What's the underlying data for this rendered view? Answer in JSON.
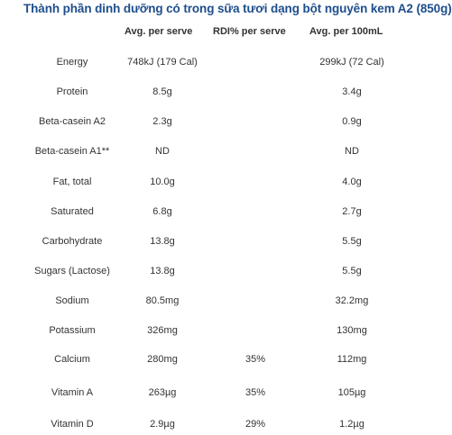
{
  "title": "Thành phần dinh dưỡng có trong sữa tươi dạng bột nguyên kem A2 (850g)",
  "headers": {
    "per_serve": "Avg. per serve",
    "rdi": "RDI% per serve",
    "per_100ml": "Avg. per 100mL"
  },
  "rows": [
    {
      "name": "Energy",
      "per_serve": "748kJ (179 Cal)",
      "rdi": "",
      "per_100ml": "299kJ (72 Cal)"
    },
    {
      "name": "Protein",
      "per_serve": "8.5g",
      "rdi": "",
      "per_100ml": "3.4g"
    },
    {
      "name": "Beta-casein A2",
      "per_serve": "2.3g",
      "rdi": "",
      "per_100ml": "0.9g"
    },
    {
      "name": "Beta-casein A1**",
      "per_serve": "ND",
      "rdi": "",
      "per_100ml": "ND"
    },
    {
      "name": "Fat, total",
      "per_serve": "10.0g",
      "rdi": "",
      "per_100ml": "4.0g"
    },
    {
      "name": "Saturated",
      "per_serve": "6.8g",
      "rdi": "",
      "per_100ml": "2.7g"
    },
    {
      "name": "Carbohydrate",
      "per_serve": "13.8g",
      "rdi": "",
      "per_100ml": "5.5g"
    },
    {
      "name": "Sugars (Lactose)",
      "per_serve": "13.8g",
      "rdi": "",
      "per_100ml": "5.5g"
    },
    {
      "name": "Sodium",
      "per_serve": "80.5mg",
      "rdi": "",
      "per_100ml": "32.2mg"
    },
    {
      "name": "Potassium",
      "per_serve": "326mg",
      "rdi": "",
      "per_100ml": "130mg"
    },
    {
      "name": "Calcium",
      "per_serve": "280mg",
      "rdi": "35%",
      "per_100ml": "112mg"
    },
    {
      "name": "Vitamin A",
      "per_serve": "263µg",
      "rdi": "35%",
      "per_100ml": "105µg"
    },
    {
      "name": "Vitamin D",
      "per_serve": "2.9µg",
      "rdi": "29%",
      "per_100ml": "1.2µg"
    }
  ]
}
